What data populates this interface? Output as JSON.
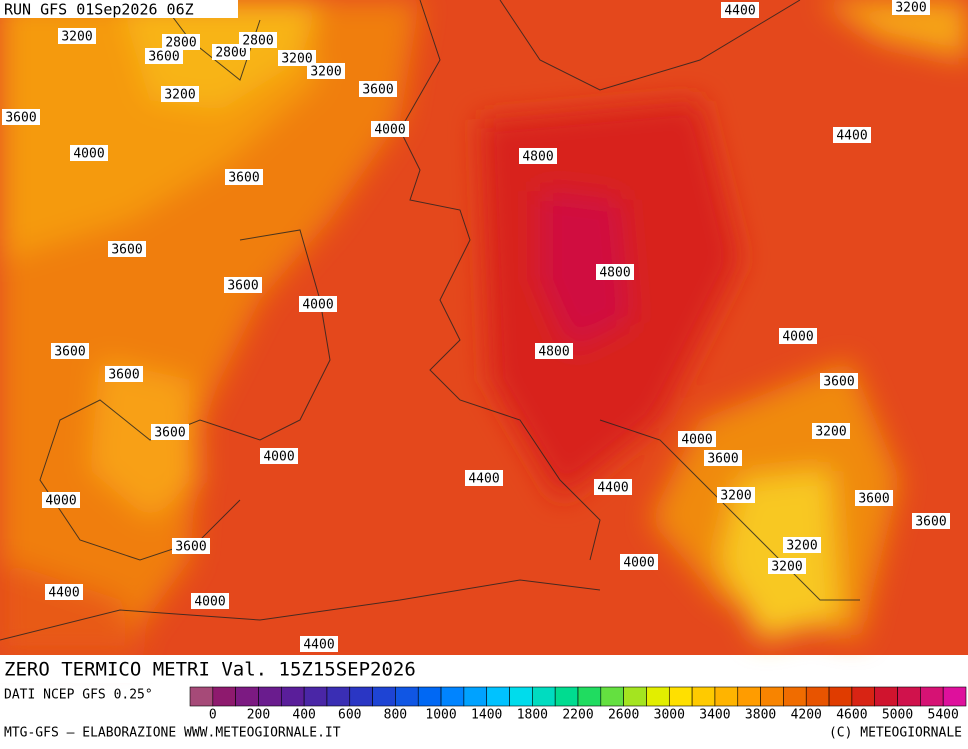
{
  "run_label": "RUN GFS 01Sep2026 06Z",
  "map_title": "ZERO TERMICO METRI Val. 15Z15SEP2026",
  "data_source": "DATI NCEP GFS 0.25°",
  "credit_left": "MTG-GFS — ELABORAZIONE WWW.METEOGIORNALE.IT",
  "credit_right": "(C) METEOGIORNALE",
  "contour_labels": [
    "3200",
    "2800",
    "3600",
    "2800",
    "2800",
    "3200",
    "3200",
    "3600",
    "3200",
    "3600",
    "4000",
    "4000",
    "4800",
    "3600",
    "3600",
    "4800",
    "3600",
    "4000",
    "4000",
    "3600",
    "4800",
    "3600",
    "3600",
    "3600",
    "3200",
    "4000",
    "4000",
    "3600",
    "4400",
    "4400",
    "4000",
    "3200",
    "3600",
    "3600",
    "3600",
    "3200",
    "4000",
    "3200",
    "4400",
    "4000",
    "4400",
    "4400",
    "3200",
    "4400"
  ],
  "colorbar": {
    "colors": [
      "#a64a78",
      "#8e1a6e",
      "#7c1a82",
      "#6a1c8e",
      "#5a1e9a",
      "#4a26a6",
      "#3a2eb4",
      "#2a36c4",
      "#1e44d4",
      "#1056e4",
      "#0068f4",
      "#0084ff",
      "#00a2ff",
      "#00c2ff",
      "#00dcec",
      "#00dcc0",
      "#00dc90",
      "#20dc60",
      "#64e040",
      "#a4e420",
      "#e2ee00",
      "#ffe000",
      "#ffca00",
      "#ffb400",
      "#ff9c00",
      "#f88400",
      "#f06c00",
      "#e85400",
      "#e03c00",
      "#d82414",
      "#d0142e",
      "#d0124c",
      "#d61274",
      "#de109c"
    ],
    "labels": [
      "0",
      "200",
      "400",
      "600",
      "800",
      "1000",
      "1400",
      "1800",
      "2200",
      "2600",
      "3000",
      "3400",
      "3800",
      "4200",
      "4600",
      "5000",
      "5400"
    ]
  }
}
